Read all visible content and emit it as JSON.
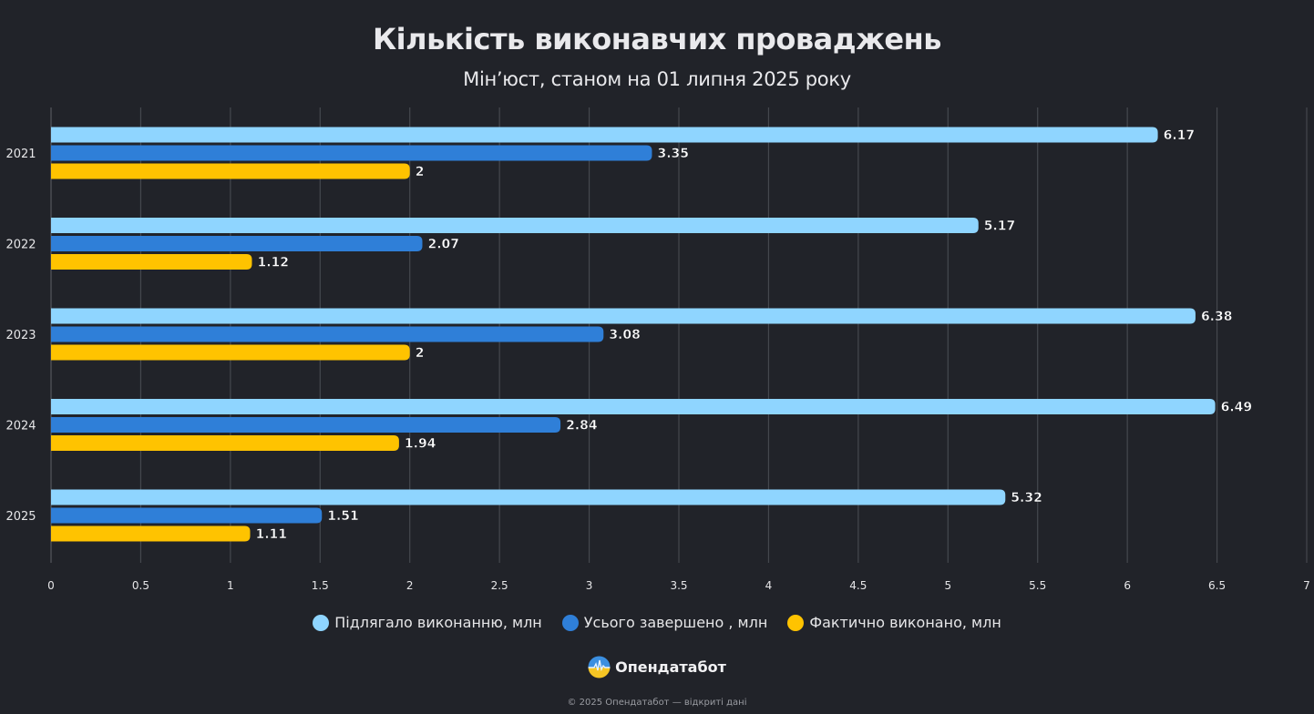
{
  "chart_data": {
    "type": "bar",
    "orientation": "horizontal",
    "title": "Кількість виконавчих проваджень",
    "subtitle": "Мін’юст, станом на 01 липня 2025 року",
    "categories": [
      "2021",
      "2022",
      "2023",
      "2024",
      "2025"
    ],
    "series": [
      {
        "name": "Підлягало виконанню, млн",
        "color": "#8fd5ff",
        "values": [
          6.17,
          5.17,
          6.38,
          6.49,
          5.32
        ],
        "labels": [
          "6.17",
          "5.17",
          "6.38",
          "6.49",
          "5.32"
        ]
      },
      {
        "name": "Усього завершено , млн",
        "color": "#2f7fd8",
        "values": [
          3.35,
          2.07,
          3.08,
          2.84,
          1.51
        ],
        "labels": [
          "3.35",
          "2.07",
          "3.08",
          "2.84",
          "1.51"
        ]
      },
      {
        "name": "Фактично виконано, млн",
        "color": "#ffc300",
        "values": [
          2,
          1.12,
          2,
          1.94,
          1.11
        ],
        "labels": [
          "2",
          "1.12",
          "2",
          "1.94",
          "1.11"
        ]
      }
    ],
    "xlim": [
      0,
      7
    ],
    "xticks": [
      "0",
      "0.5",
      "1",
      "1.5",
      "2",
      "2.5",
      "3",
      "3.5",
      "4",
      "4.5",
      "5",
      "5.5",
      "6",
      "6.5",
      "7"
    ],
    "grid": true,
    "legend_position": "bottom"
  },
  "brand": {
    "name": "Опендатабот"
  },
  "footer": {
    "text": "© 2025 Опендатабот — відкриті дані"
  }
}
